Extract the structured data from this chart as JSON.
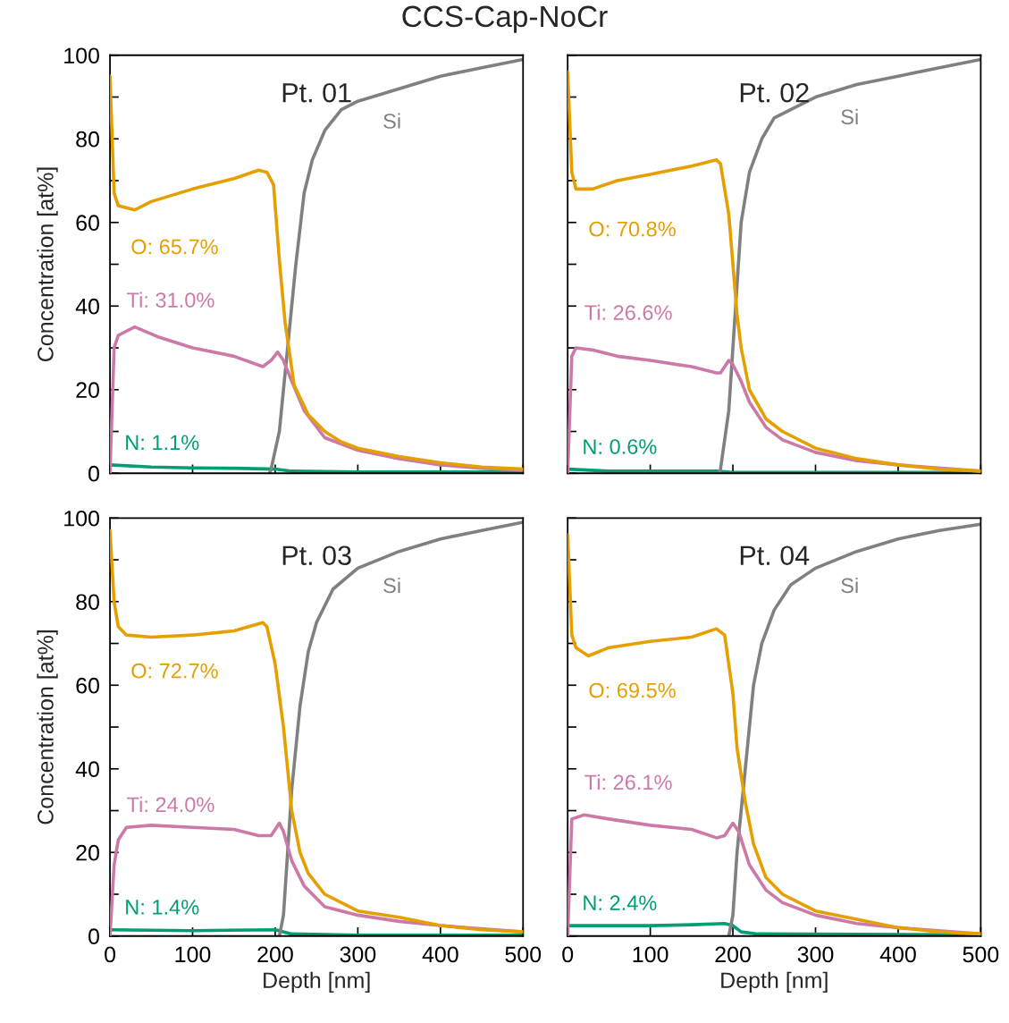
{
  "chart_data": [
    {
      "type": "line",
      "title": "Pt. 01",
      "subtitle": "CCS-Cap-NoCr",
      "ylabel": "Concentration [at%]",
      "xlim": [
        0,
        500
      ],
      "xticks": [
        0,
        100,
        200,
        300,
        400,
        500
      ],
      "ylim": [
        0,
        100
      ],
      "yticks": [
        0,
        {
          "value": 10,
          "label": null
        },
        20,
        {
          "value": 30,
          "label": null
        },
        40,
        {
          "value": 50,
          "label": null
        },
        60,
        {
          "value": 70,
          "label": null
        },
        80,
        {
          "value": 90,
          "label": null
        },
        100
      ],
      "tick_labels": "y",
      "line_style": "solid",
      "series": [
        {
          "name": "O: 65.7%",
          "color": "#e69f00",
          "x": [
            0,
            5,
            10,
            30,
            50,
            100,
            150,
            180,
            190,
            198,
            205,
            212,
            223,
            240,
            260,
            280,
            300,
            350,
            400,
            450,
            500
          ],
          "values": [
            95,
            67,
            64,
            63,
            65,
            68,
            70.5,
            72.5,
            72,
            69,
            51,
            36,
            21,
            14,
            10,
            7.5,
            6,
            4,
            2.5,
            1.5,
            1
          ]
        },
        {
          "name": "Ti: 31.0%",
          "color": "#cc79a7",
          "x": [
            0,
            5,
            10,
            30,
            60,
            100,
            150,
            185,
            195,
            203,
            210,
            220,
            235,
            260,
            300,
            350,
            400,
            450,
            500
          ],
          "values": [
            0,
            30,
            33,
            35,
            32.5,
            30,
            28,
            25.5,
            27,
            29,
            27,
            22,
            15,
            8.5,
            5.5,
            3.5,
            2,
            1.2,
            0.7
          ]
        },
        {
          "name": "N: 1.1%",
          "color": "#009e73",
          "x": [
            0,
            50,
            100,
            150,
            200,
            220,
            300,
            500
          ],
          "values": [
            2,
            1.5,
            1.3,
            1.2,
            1,
            0.5,
            0.3,
            0.3
          ]
        },
        {
          "name": "Si",
          "color": "#808080",
          "x": [
            193,
            195,
            205,
            215,
            225,
            235,
            245,
            260,
            280,
            300,
            350,
            400,
            450,
            500
          ],
          "values": [
            0,
            1,
            10,
            30,
            50,
            67,
            75,
            82,
            87,
            89,
            92,
            95,
            97,
            99
          ]
        }
      ]
    },
    {
      "type": "line",
      "title": "Pt. 02",
      "xlim": [
        0,
        500
      ],
      "xticks": [
        0,
        100,
        200,
        300,
        400,
        500
      ],
      "ylim": [
        0,
        100
      ],
      "yticks": [
        0,
        {
          "value": 10,
          "label": null
        },
        20,
        {
          "value": 30,
          "label": null
        },
        40,
        {
          "value": 50,
          "label": null
        },
        60,
        {
          "value": 70,
          "label": null
        },
        80,
        {
          "value": 90,
          "label": null
        },
        100
      ],
      "tick_labels": false,
      "line_style": "solid",
      "series": [
        {
          "name": "O: 70.8%",
          "color": "#e69f00",
          "x": [
            0,
            5,
            10,
            30,
            60,
            100,
            150,
            180,
            185,
            195,
            200,
            205,
            210,
            220,
            240,
            260,
            300,
            350,
            400,
            450,
            500
          ],
          "values": [
            96,
            72,
            68,
            68,
            70,
            71.5,
            73.5,
            75,
            74,
            62,
            50,
            38,
            30,
            20,
            13,
            10,
            6,
            3.5,
            2,
            1,
            0.5
          ]
        },
        {
          "name": "Ti: 26.6%",
          "color": "#cc79a7",
          "x": [
            0,
            5,
            10,
            30,
            60,
            100,
            150,
            180,
            185,
            195,
            200,
            210,
            220,
            240,
            260,
            300,
            350,
            400,
            500
          ],
          "values": [
            0,
            28,
            30,
            29.5,
            28,
            27,
            25.5,
            24,
            24,
            27,
            26,
            22,
            17,
            11,
            8,
            5,
            3,
            2,
            0.5
          ]
        },
        {
          "name": "N: 0.6%",
          "color": "#009e73",
          "x": [
            0,
            50,
            180,
            200,
            500
          ],
          "values": [
            1,
            0.5,
            0.5,
            0.2,
            0.2
          ]
        },
        {
          "name": "Si",
          "color": "#808080",
          "x": [
            183,
            185,
            195,
            200,
            205,
            210,
            220,
            235,
            250,
            300,
            350,
            400,
            450,
            500
          ],
          "values": [
            0,
            1,
            15,
            30,
            45,
            60,
            72,
            80,
            85,
            90,
            93,
            95,
            97,
            99
          ]
        }
      ]
    },
    {
      "type": "line",
      "title": "Pt. 03",
      "xlabel": "Depth [nm]",
      "ylabel": "Concentration [at%]",
      "xlim": [
        0,
        500
      ],
      "xticks": [
        0,
        100,
        200,
        300,
        400,
        500
      ],
      "ylim": [
        0,
        100
      ],
      "yticks": [
        0,
        {
          "value": 10,
          "label": null
        },
        20,
        {
          "value": 30,
          "label": null
        },
        40,
        {
          "value": 50,
          "label": null
        },
        60,
        {
          "value": 70,
          "label": null
        },
        80,
        {
          "value": 90,
          "label": null
        },
        100
      ],
      "line_style": "solid",
      "series": [
        {
          "name": "O: 72.7%",
          "color": "#e69f00",
          "x": [
            0,
            5,
            10,
            20,
            50,
            100,
            150,
            185,
            190,
            200,
            210,
            215,
            220,
            230,
            240,
            260,
            300,
            350,
            400,
            450,
            500
          ],
          "values": [
            97,
            80,
            74,
            72,
            71.5,
            72,
            73,
            75,
            74,
            65,
            50,
            40,
            30,
            20,
            15,
            10,
            6,
            4.5,
            2.5,
            1.5,
            1
          ]
        },
        {
          "name": "Ti: 24.0%",
          "color": "#cc79a7",
          "x": [
            0,
            5,
            10,
            20,
            50,
            100,
            150,
            180,
            195,
            205,
            210,
            220,
            235,
            260,
            300,
            350,
            400,
            500
          ],
          "values": [
            0,
            17,
            23,
            26,
            26.5,
            26,
            25.5,
            24,
            24,
            27,
            25,
            18,
            12,
            7,
            5,
            3.5,
            2.5,
            1
          ]
        },
        {
          "name": "N: 1.4%",
          "color": "#009e73",
          "x": [
            0,
            100,
            200,
            220,
            300,
            500
          ],
          "values": [
            1.5,
            1.3,
            1.5,
            0.5,
            0.2,
            0.2
          ]
        },
        {
          "name": "Si",
          "color": "#808080",
          "x": [
            205,
            210,
            215,
            220,
            230,
            240,
            250,
            270,
            300,
            350,
            400,
            450,
            500
          ],
          "values": [
            0,
            5,
            20,
            35,
            55,
            68,
            75,
            83,
            88,
            92,
            95,
            97,
            99
          ]
        }
      ]
    },
    {
      "type": "line",
      "title": "Pt. 04",
      "xlabel": "Depth [nm]",
      "xlim": [
        0,
        500
      ],
      "xticks": [
        0,
        100,
        200,
        300,
        400,
        500
      ],
      "ylim": [
        0,
        100
      ],
      "yticks": [
        0,
        {
          "value": 10,
          "label": null
        },
        20,
        {
          "value": 30,
          "label": null
        },
        40,
        {
          "value": 50,
          "label": null
        },
        60,
        {
          "value": 70,
          "label": null
        },
        80,
        {
          "value": 90,
          "label": null
        },
        100
      ],
      "tick_labels": "x",
      "line_style": "solid",
      "series": [
        {
          "name": "O: 69.5%",
          "color": "#e69f00",
          "x": [
            0,
            5,
            10,
            25,
            50,
            100,
            150,
            180,
            190,
            200,
            205,
            215,
            225,
            240,
            260,
            300,
            350,
            400,
            450,
            500
          ],
          "values": [
            96,
            72,
            69,
            67,
            69,
            70.5,
            71.5,
            73.5,
            72,
            58,
            45,
            32,
            22,
            14,
            10,
            6,
            4,
            2,
            1,
            0.5
          ]
        },
        {
          "name": "Ti: 26.1%",
          "color": "#cc79a7",
          "x": [
            0,
            5,
            20,
            50,
            100,
            150,
            180,
            190,
            200,
            207,
            220,
            240,
            260,
            300,
            350,
            400,
            500
          ],
          "values": [
            0,
            28,
            29,
            28,
            26.5,
            25.5,
            23.5,
            24,
            27,
            25,
            17,
            11,
            8,
            5,
            3,
            2,
            0.5
          ]
        },
        {
          "name": "N: 2.4%",
          "color": "#009e73",
          "x": [
            0,
            50,
            100,
            150,
            190,
            200,
            210,
            230,
            500
          ],
          "values": [
            2.5,
            2.5,
            2.5,
            2.7,
            3,
            2.5,
            1,
            0.5,
            0.3
          ]
        },
        {
          "name": "Si",
          "color": "#808080",
          "x": [
            195,
            200,
            205,
            215,
            225,
            235,
            250,
            270,
            300,
            350,
            400,
            450,
            500
          ],
          "values": [
            0,
            5,
            20,
            40,
            60,
            70,
            78,
            84,
            88,
            92,
            95,
            97,
            98.5
          ]
        }
      ]
    }
  ]
}
